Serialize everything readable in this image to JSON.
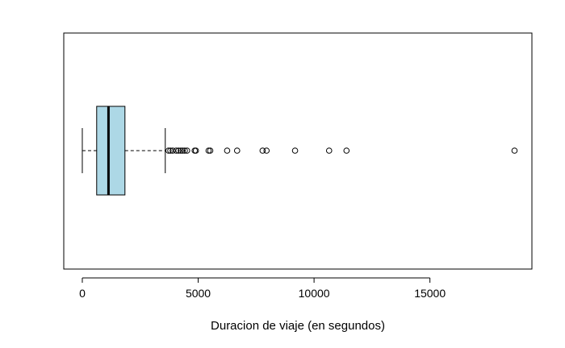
{
  "chart_data": {
    "type": "boxplot",
    "orientation": "horizontal",
    "title": "",
    "xlabel": "Duracion de viaje (en segundos)",
    "ylabel": "",
    "xlim": [
      -800,
      19400
    ],
    "xticks": [
      0,
      5000,
      10000,
      15000
    ],
    "xtick_labels": [
      "0",
      "5000",
      "10000",
      "15000"
    ],
    "box": {
      "whisker_low": 0,
      "q1": 620,
      "median": 1130,
      "q3": 1840,
      "whisker_high": 3580,
      "fill_color": "#add8e6"
    },
    "outliers": [
      3720,
      3800,
      3900,
      4050,
      4150,
      4250,
      4330,
      4420,
      4520,
      4850,
      4900,
      5450,
      5520,
      6250,
      6680,
      7780,
      7950,
      9180,
      10650,
      11400,
      18650
    ]
  }
}
